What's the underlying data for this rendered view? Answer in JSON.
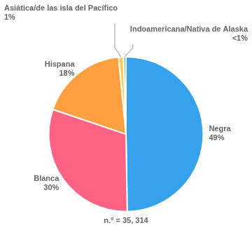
{
  "chart_data": {
    "type": "pie",
    "categories": [
      "Negra",
      "Blanca",
      "Hispana",
      "Asiática/de las isla del Pacífico",
      "Indoamericana/Nativa de Alaska"
    ],
    "values": [
      49,
      30,
      18,
      1,
      0.5
    ],
    "value_labels": [
      "49%",
      "30%",
      "18%",
      "1%",
      "<1%"
    ],
    "data_labels": true,
    "subtitle": "n.° = 35, 314"
  }
}
